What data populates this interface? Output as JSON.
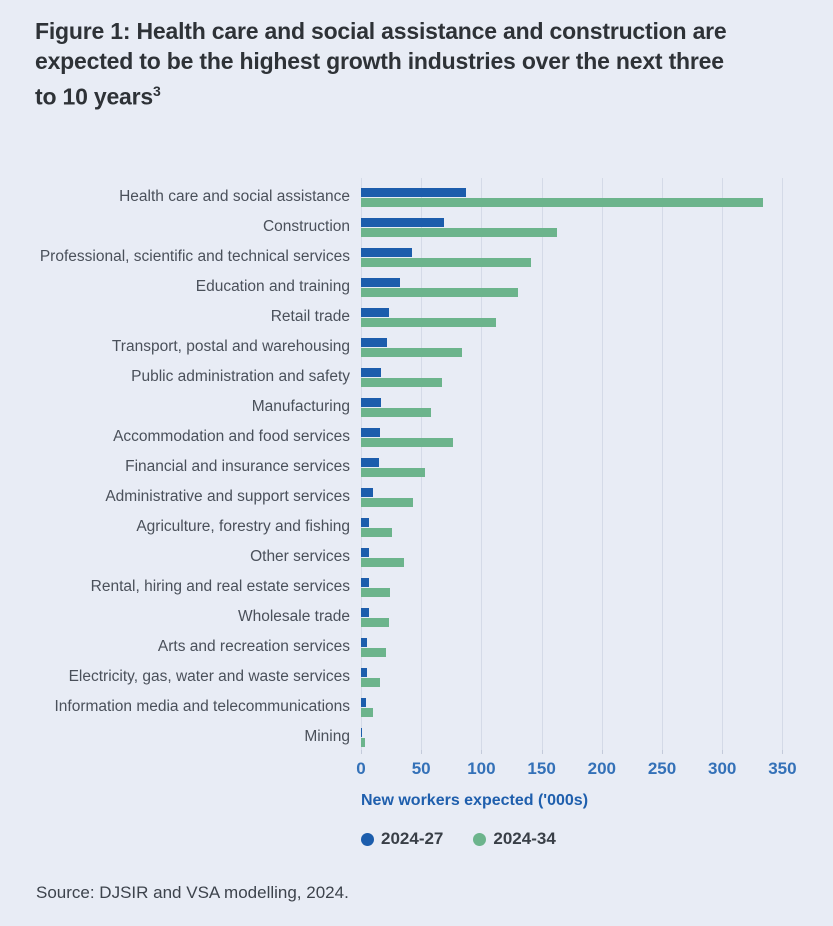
{
  "figure": {
    "title_lines": [
      "Figure 1: Health care and social assistance and construction are",
      "expected to be the highest growth industries over the next three",
      "to 10 years"
    ],
    "title_superscript": "3",
    "source": "Source: DJSIR and VSA modelling, 2024."
  },
  "chart_data": {
    "type": "bar",
    "orientation": "horizontal",
    "title": "Figure 1: Health care and social assistance and construction are expected to be the highest growth industries over the next three to 10 years",
    "xlabel": "New workers expected ('000s)",
    "categories": [
      "Health care and social assistance",
      "Construction",
      "Professional, scientific and technical services",
      "Education and training",
      "Retail trade",
      "Transport, postal and warehousing",
      "Public administration and safety",
      "Manufacturing",
      "Accommodation and food services",
      "Financial and insurance services",
      "Administrative and support services",
      "Agriculture, forestry and fishing",
      "Other services",
      "Rental, hiring and real estate services",
      "Wholesale trade",
      "Arts and recreation services",
      "Electricity, gas, water and waste services",
      "Information media and telecommunications",
      "Mining"
    ],
    "series": [
      {
        "name": "2024-27",
        "color": "#1c5dac",
        "values": [
          87,
          69,
          42,
          32,
          23,
          22,
          17,
          17,
          16,
          15,
          10,
          7,
          7,
          7,
          7,
          5,
          5,
          4,
          1
        ]
      },
      {
        "name": "2024-34",
        "color": "#6cb48c",
        "values": [
          334,
          163,
          141,
          130,
          112,
          84,
          67,
          58,
          76,
          53,
          43,
          26,
          36,
          24,
          23,
          21,
          16,
          10,
          3
        ]
      }
    ],
    "x_ticks": [
      0,
      50,
      100,
      150,
      200,
      250,
      300,
      350
    ],
    "xlim": [
      0,
      357
    ],
    "grid": true,
    "legend_position": "bottom"
  },
  "colors": {
    "background": "#e8ecf5",
    "axis_label_blue": "#1f5fad",
    "tick_label_blue": "#3471b8",
    "series_2024_27": "#1c5dac",
    "series_2024_34": "#6cb48c"
  }
}
